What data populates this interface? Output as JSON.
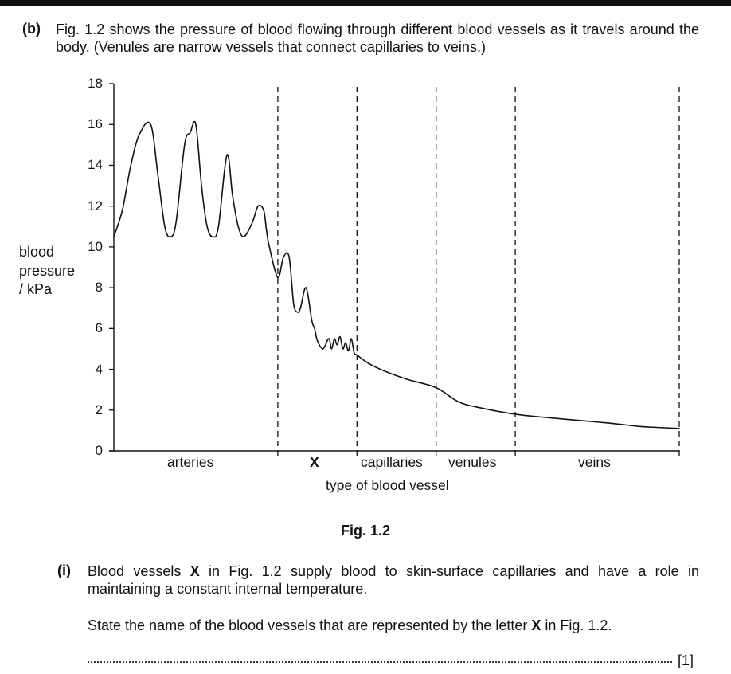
{
  "header": {
    "part_label": "(b)",
    "intro": "Fig. 1.2 shows the pressure of blood flowing through different blood vessels as it travels around the body. (Venules are narrow vessels that connect capillaries to veins.)"
  },
  "figure": {
    "caption": "Fig. 1.2",
    "ylabel_lines": [
      "blood",
      "pressure",
      "/ kPa"
    ],
    "xlabel": "type of blood vessel",
    "segments": [
      "arteries",
      "X",
      "capillaries",
      "venules",
      "veins"
    ]
  },
  "chart_data": {
    "type": "line",
    "xlabel": "type of blood vessel",
    "ylabel": "blood pressure / kPa",
    "ylim": [
      0,
      18
    ],
    "y_ticks": [
      0,
      2,
      4,
      6,
      8,
      10,
      12,
      14,
      16,
      18
    ],
    "x_categories": [
      "arteries",
      "X",
      "capillaries",
      "venules",
      "veins"
    ],
    "category_boundaries": [
      0.29,
      0.43,
      0.57,
      0.71,
      1.0
    ],
    "series": [
      {
        "x": [
          0,
          0.015,
          0.03,
          0.045,
          0.065,
          0.078,
          0.09,
          0.1,
          0.11,
          0.125,
          0.135,
          0.145,
          0.155,
          0.165,
          0.175,
          0.185,
          0.2,
          0.21,
          0.22,
          0.23,
          0.245,
          0.255,
          0.265,
          0.27,
          0.275,
          0.29,
          0.3,
          0.31,
          0.318,
          0.325,
          0.33,
          0.34,
          0.35,
          0.355,
          0.36,
          0.37,
          0.38,
          0.385,
          0.39,
          0.395,
          0.4,
          0.405,
          0.41,
          0.415,
          0.42,
          0.425,
          0.43,
          0.45,
          0.48,
          0.52,
          0.57,
          0.61,
          0.65,
          0.71,
          0.76,
          0.82,
          0.88,
          0.93,
          0.96,
          1.0
        ],
        "y": [
          10.5,
          11.8,
          14,
          15.5,
          16,
          13.5,
          11,
          10.5,
          11.2,
          15,
          15.6,
          16,
          13,
          11,
          10.5,
          11,
          14.5,
          12.5,
          11,
          10.5,
          11.2,
          12,
          11.8,
          10.8,
          10,
          8.5,
          9.5,
          9.5,
          7.2,
          6.8,
          7,
          8,
          6.4,
          6,
          5.4,
          5,
          5.5,
          5,
          5.5,
          5.2,
          5.6,
          5,
          5.3,
          4.9,
          5.5,
          4.8,
          4.7,
          4.3,
          3.9,
          3.5,
          3.1,
          2.4,
          2.1,
          1.8,
          1.65,
          1.5,
          1.35,
          1.2,
          1.15,
          1.1
        ]
      }
    ]
  },
  "question": {
    "sub_label": "(i)",
    "text1_a": "Blood vessels ",
    "text1_x": "X",
    "text1_b": " in Fig. 1.2 supply blood to skin-surface capillaries and have a role in maintaining a constant internal temperature.",
    "text2_a": "State the name of the blood vessels that are represented by the letter ",
    "text2_x": "X",
    "text2_b": " in Fig. 1.2.",
    "marks": "[1]"
  }
}
